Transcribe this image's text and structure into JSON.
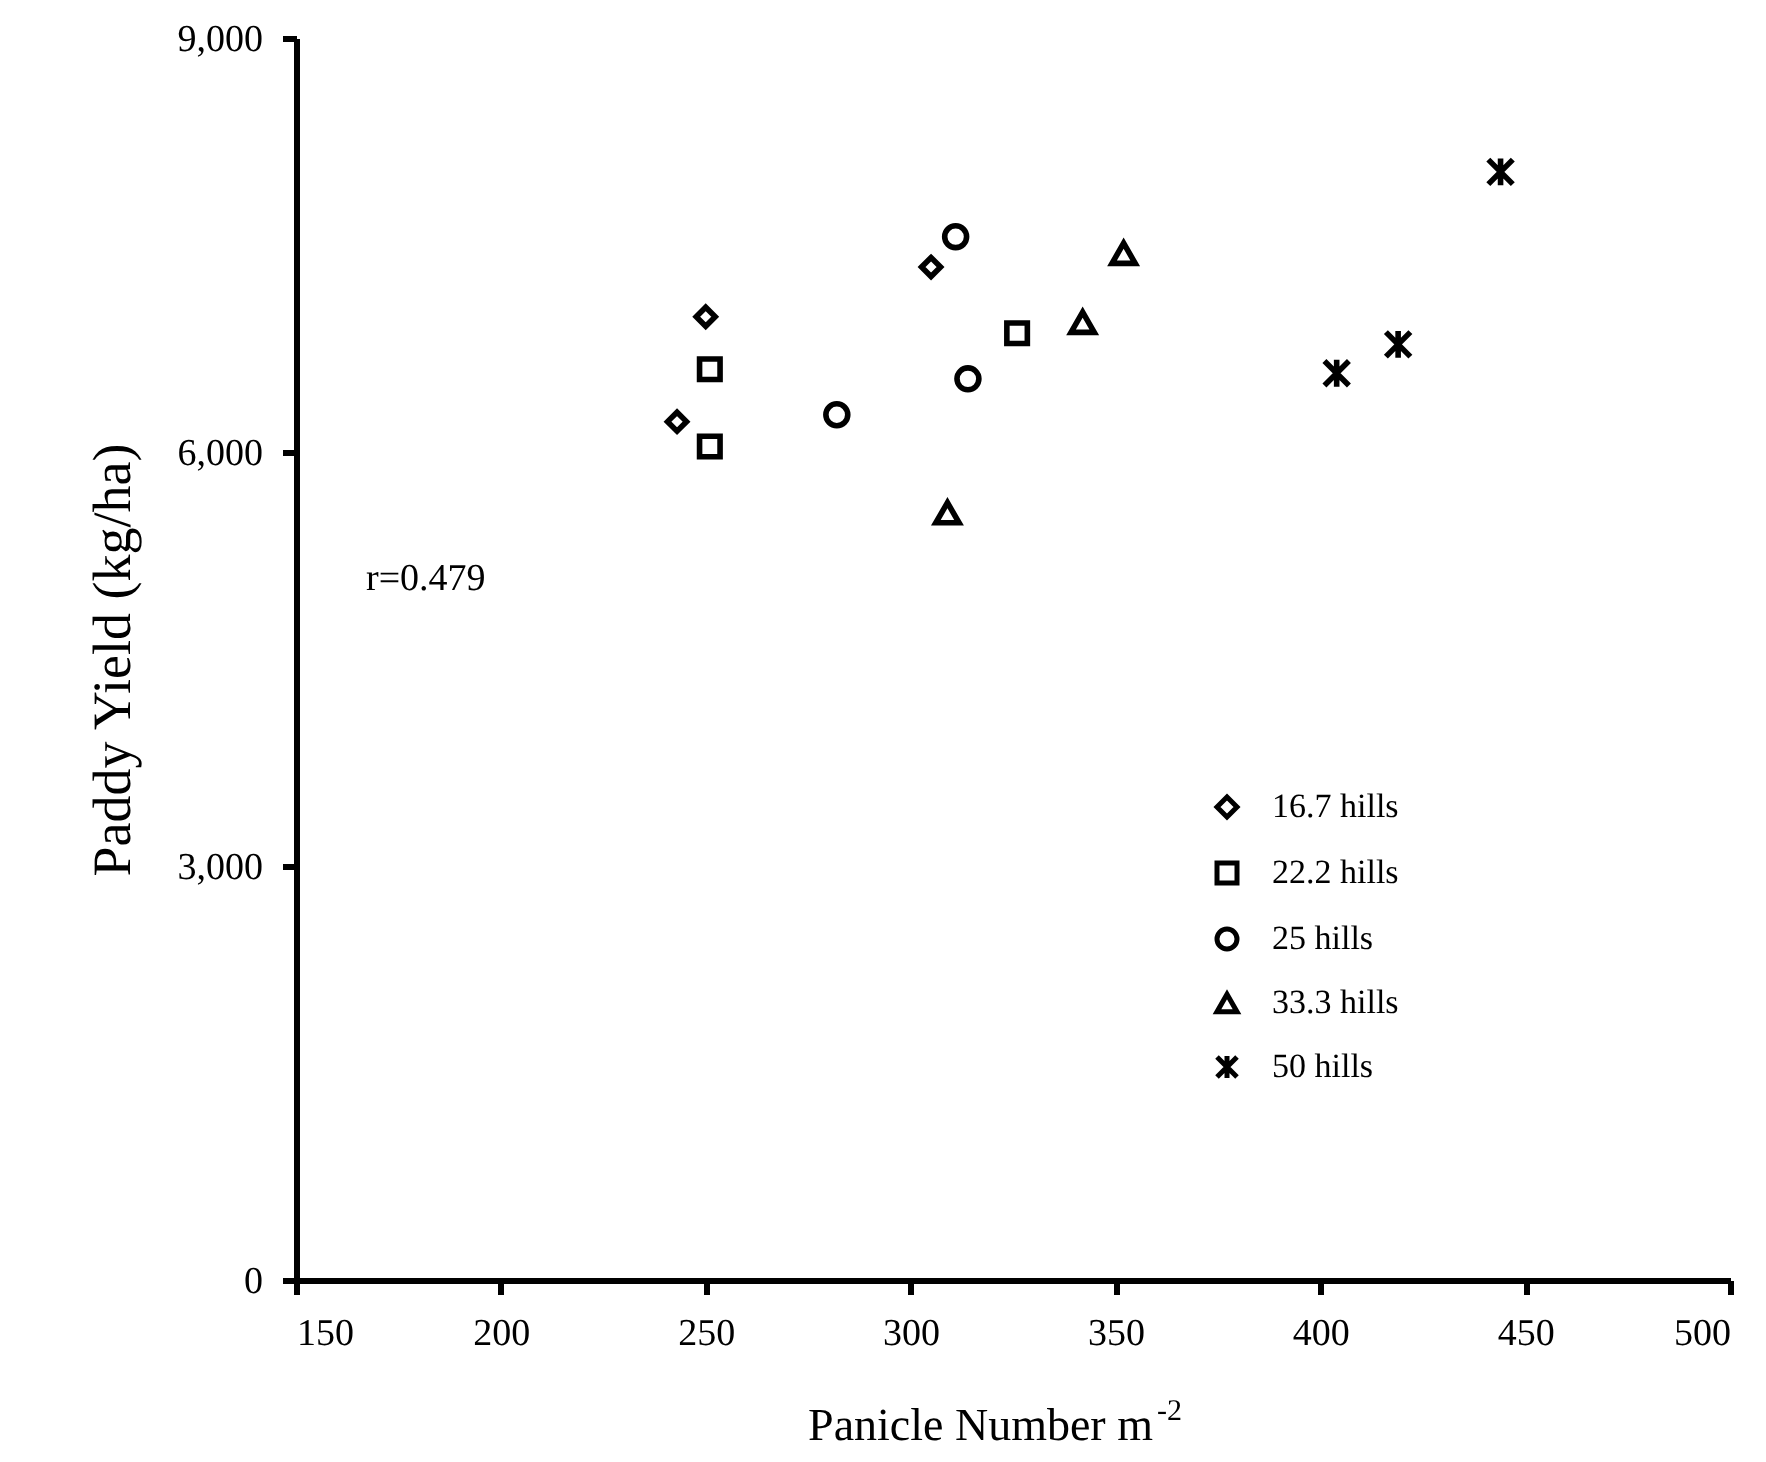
{
  "chart_data": {
    "type": "scatter",
    "xlabel": "Panicle Number m$^{-2}$",
    "ylabel": "Paddy Yield (kg/ha)",
    "xlim": [
      150,
      500
    ],
    "xticks": [
      150,
      200,
      250,
      300,
      350,
      400,
      450,
      500
    ],
    "ylim": [
      0,
      9000
    ],
    "yticks": [
      0,
      {
        "value": 3000,
        "label": "3,000"
      },
      {
        "value": 6000,
        "label": "6,000"
      },
      {
        "value": 9000,
        "label": "9,000"
      }
    ],
    "grid": false,
    "legend": "right",
    "annotations": [
      "r=0.479"
    ],
    "series": [
      {
        "name": "16.7 hills",
        "color": "#000000",
        "marker": "diamond",
        "x": [
          250,
          243,
          305
        ],
        "values": [
          6980,
          6220,
          7340
        ]
      },
      {
        "name": "22.2 hills",
        "color": "#000000",
        "marker": "square",
        "x": [
          251,
          251,
          326
        ],
        "values": [
          6600,
          6040,
          6860
        ]
      },
      {
        "name": "25 hills",
        "color": "#000000",
        "marker": "circle",
        "x": [
          282,
          311,
          314
        ],
        "values": [
          6270,
          7560,
          6530
        ]
      },
      {
        "name": "33.3 hills",
        "color": "#000000",
        "marker": "triangle",
        "x": [
          352,
          342,
          309
        ],
        "values": [
          7440,
          6940,
          5560
        ]
      },
      {
        "name": "50 hills",
        "color": "#000000",
        "marker": "cross",
        "x": [
          444,
          419,
          404
        ],
        "values": [
          8030,
          6780,
          6570
        ]
      }
    ]
  }
}
